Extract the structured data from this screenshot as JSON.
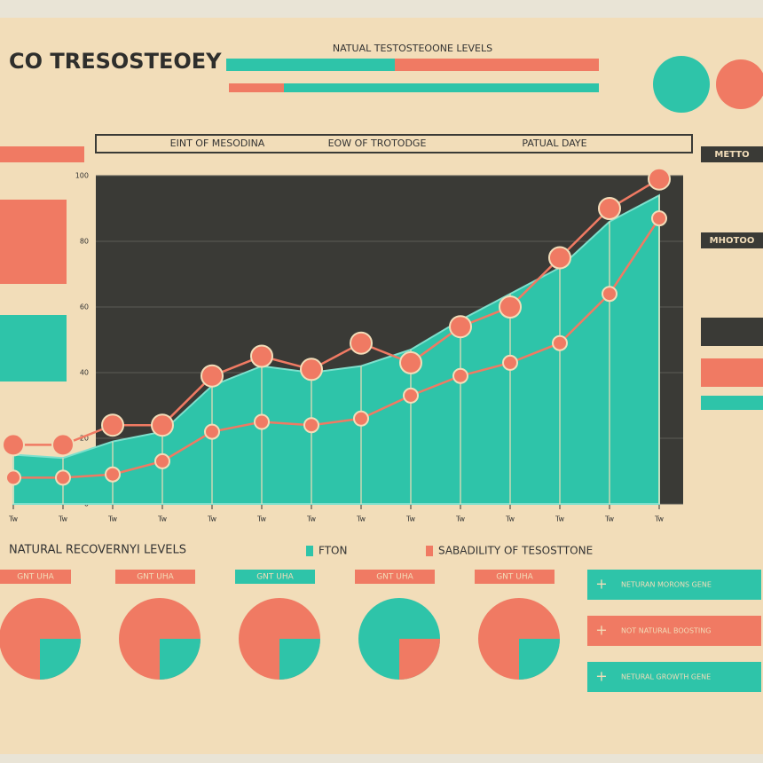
{
  "header": {
    "title": "CO TRESOSTEOEY",
    "subtitle": "NATUAL TESTOSTEOONE LEVELS"
  },
  "chart_data": {
    "type": "line",
    "column_titles": [
      "EINT OF MESODINA",
      "EOW OF TROTODGE",
      "PATUAL DAYE"
    ],
    "categories": [
      "Tw",
      "Tw",
      "Tw",
      "Tw",
      "Tw",
      "Tw",
      "Tw",
      "Tw",
      "Tw",
      "Tw",
      "Tw",
      "Tw",
      "Tw",
      "Tw"
    ],
    "series": [
      {
        "name": "FTON",
        "color": "#2ec4a9",
        "fill": true,
        "values": [
          15,
          14,
          19,
          22,
          36,
          42,
          40,
          42,
          47,
          56,
          64,
          72,
          86,
          94
        ]
      },
      {
        "name": "SABADILITY OF TESOSTTONE",
        "color": "#f07a63",
        "fill": false,
        "values": [
          8,
          8,
          9,
          13,
          22,
          25,
          24,
          26,
          33,
          39,
          43,
          49,
          64,
          87
        ]
      },
      {
        "color": "#f07a63",
        "fill": false,
        "values": [
          18,
          18,
          24,
          24,
          39,
          45,
          41,
          49,
          43,
          54,
          60,
          75,
          90,
          99
        ]
      }
    ],
    "ylim": [
      0,
      100
    ],
    "yticks": [
      0,
      20,
      40,
      60,
      80,
      100
    ],
    "grid": true
  },
  "gauges": {
    "title": "NATURAL RECOVERNYI LEVELS",
    "labels": [
      "GNT UHA",
      "GNT UHA",
      "GNT UHA",
      "GNT UHA",
      "GNT UHA"
    ]
  },
  "sidebar": {
    "headings": [
      "METTO",
      "MHOTOO"
    ]
  },
  "buttons": [
    "NETURAN MORONS GENE",
    "NOT NATURAL BOOSTING",
    "NETURAL GROWTH GENE"
  ]
}
